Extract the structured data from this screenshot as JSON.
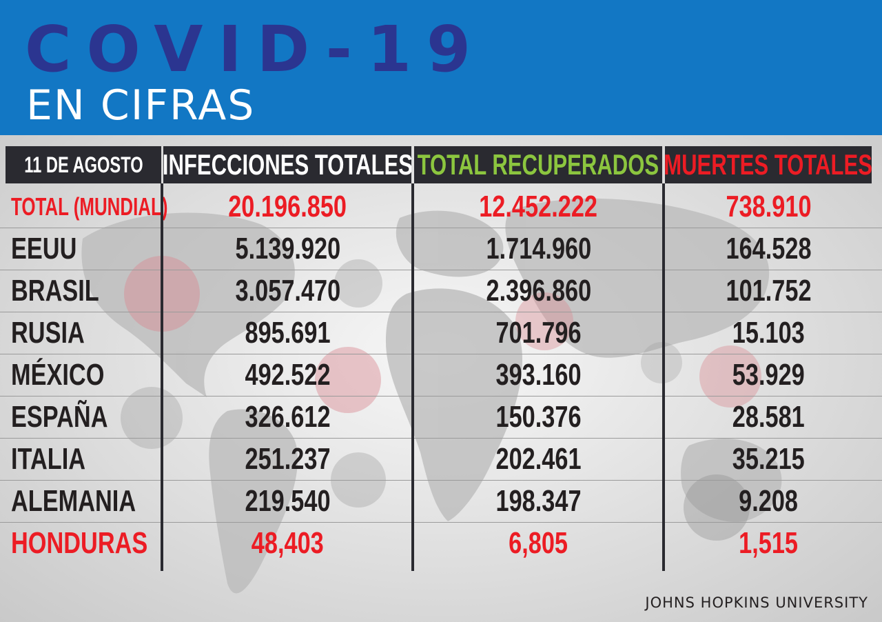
{
  "header": {
    "title": "COVID-19",
    "subtitle": "EN CIFRAS"
  },
  "table": {
    "columns": {
      "date": "11 DE AGOSTO",
      "infections": "INFECCIONES TOTALES",
      "recovered": "TOTAL RECUPERADOS",
      "deaths": "MUERTES TOTALES"
    },
    "rows": [
      {
        "name": "TOTAL (MUNDIAL)",
        "infections": "20.196.850",
        "recovered": "12.452.222",
        "deaths": "738.910"
      },
      {
        "name": "EEUU",
        "infections": "5.139.920",
        "recovered": "1.714.960",
        "deaths": "164.528"
      },
      {
        "name": "BRASIL",
        "infections": "3.057.470",
        "recovered": "2.396.860",
        "deaths": "101.752"
      },
      {
        "name": "RUSIA",
        "infections": "895.691",
        "recovered": "701.796",
        "deaths": "15.103"
      },
      {
        "name": "MÉXICO",
        "infections": "492.522",
        "recovered": "393.160",
        "deaths": "53.929"
      },
      {
        "name": "ESPAÑA",
        "infections": "326.612",
        "recovered": "150.376",
        "deaths": "28.581"
      },
      {
        "name": "ITALIA",
        "infections": "251.237",
        "recovered": "202.461",
        "deaths": "35.215"
      },
      {
        "name": "ALEMANIA",
        "infections": "219.540",
        "recovered": "198.347",
        "deaths": "9.208"
      },
      {
        "name": "HONDURAS",
        "infections": "48,403",
        "recovered": "6,805",
        "deaths": "1,515"
      }
    ]
  },
  "source": "JOHNS HOPKINS UNIVERSITY",
  "colors": {
    "header_bg": "#1277c4",
    "title": "#2b3590",
    "recovered_header": "#8cc63f",
    "deaths_header": "#ec1c24",
    "highlight_red": "#ec1c24",
    "table_header_bg": "#2a2a30"
  },
  "background_icons": [
    "world-map",
    "virus-icon"
  ]
}
